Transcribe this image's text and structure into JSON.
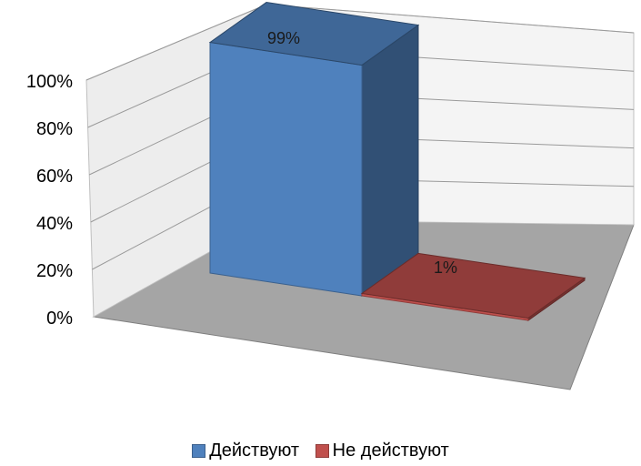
{
  "chart_data": {
    "type": "bar",
    "style": "3d-column",
    "categories": [
      "Действуют",
      "Не действуют"
    ],
    "series": [
      {
        "name": "Действуют",
        "value": 99,
        "label": "99%",
        "color": "#4f81bd"
      },
      {
        "name": "Не действуют",
        "value": 1,
        "label": "1%",
        "color": "#c0504d"
      }
    ],
    "yticks": [
      "0%",
      "20%",
      "40%",
      "60%",
      "80%",
      "100%"
    ],
    "ylim": [
      0,
      100
    ],
    "grid": true,
    "legend_position": "bottom"
  }
}
